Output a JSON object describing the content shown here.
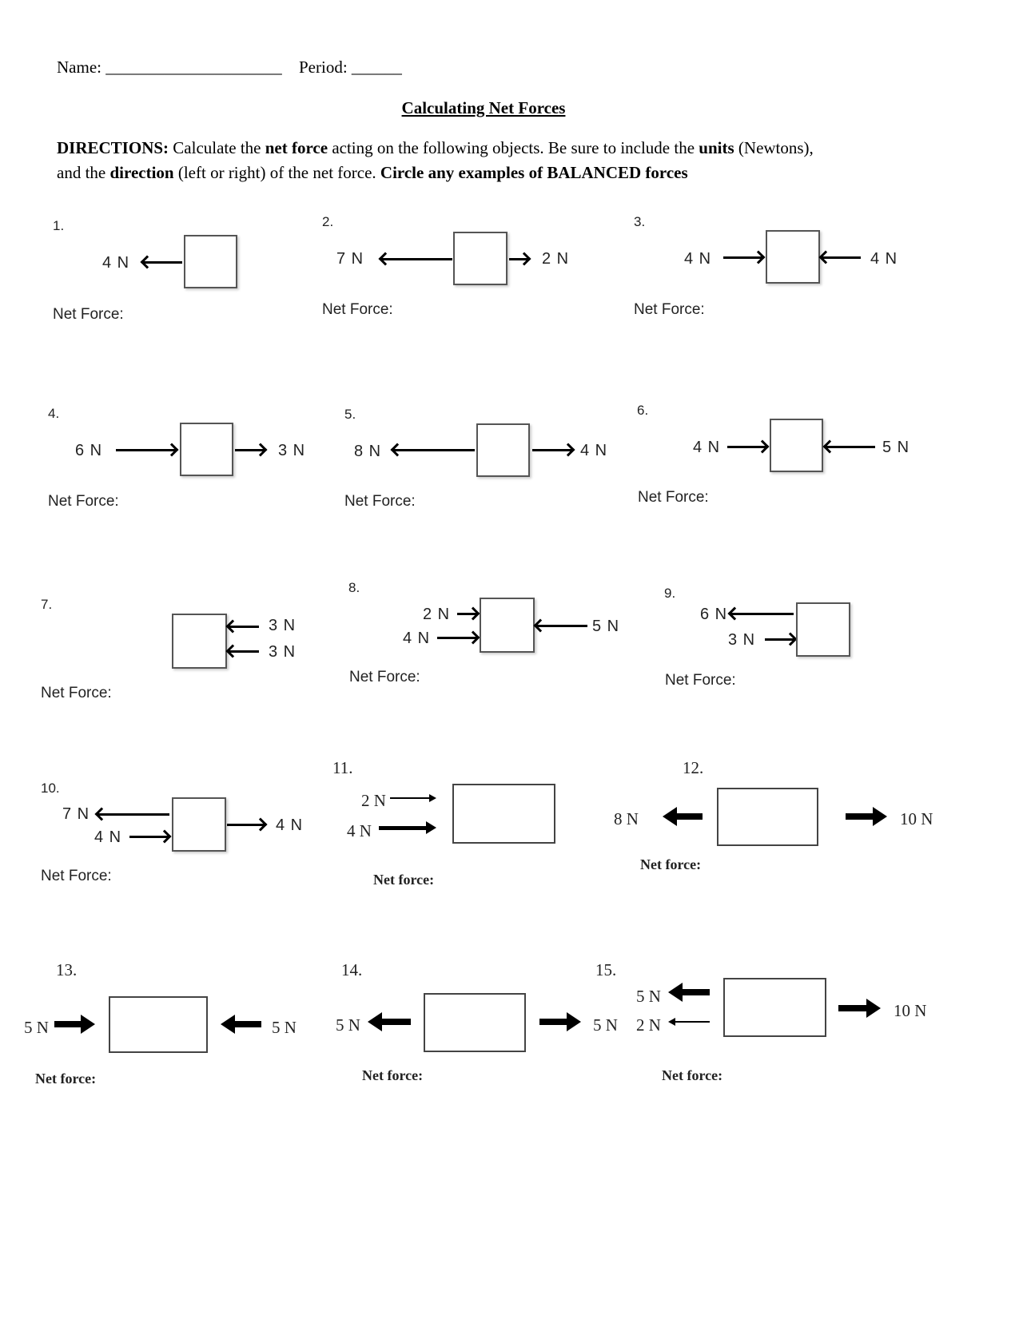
{
  "header": {
    "name_label": "Name: _____________________",
    "period_label": "Period: ______",
    "title": "Calculating Net Forces"
  },
  "directions": {
    "lead": "DIRECTIONS:",
    "t1": " Calculate the ",
    "b1": "net force",
    "t2": " acting on the following objects. Be sure to include the ",
    "b2": "units",
    "t3": " (Newtons),",
    "t4": "and the ",
    "b3": "direction",
    "t5": " (left or right) of the net force. ",
    "b4": "Circle any examples of BALANCED forces"
  },
  "problems": [
    {
      "number": "1.",
      "forces": [
        "4 N"
      ],
      "net_label": "Net Force:"
    },
    {
      "number": "2.",
      "forces": [
        "7 N",
        "2 N"
      ],
      "net_label": "Net Force:"
    },
    {
      "number": "3.",
      "forces": [
        "4 N",
        "4 N"
      ],
      "net_label": "Net Force:"
    },
    {
      "number": "4.",
      "forces": [
        "6 N",
        "3 N"
      ],
      "net_label": "Net Force:"
    },
    {
      "number": "5.",
      "forces": [
        "8 N",
        "4 N"
      ],
      "net_label": "Net Force:"
    },
    {
      "number": "6.",
      "forces": [
        "4 N",
        "5 N"
      ],
      "net_label": "Net Force:"
    },
    {
      "number": "7.",
      "forces": [
        "3 N",
        "3 N"
      ],
      "net_label": "Net Force:"
    },
    {
      "number": "8.",
      "forces": [
        "2 N",
        "4 N",
        "5 N"
      ],
      "net_label": "Net Force:"
    },
    {
      "number": "9.",
      "forces": [
        "6 N",
        "3 N"
      ],
      "net_label": "Net Force:"
    },
    {
      "number": "10.",
      "forces": [
        "7 N",
        "4 N",
        "4 N"
      ],
      "net_label": "Net Force:"
    },
    {
      "number": "11.",
      "forces": [
        "2 N",
        "4 N"
      ],
      "net_label": "Net force:"
    },
    {
      "number": "12.",
      "forces": [
        "8 N",
        "10 N"
      ],
      "net_label": "Net force:"
    },
    {
      "number": "13.",
      "forces": [
        "5 N",
        "5 N"
      ],
      "net_label": "Net force:"
    },
    {
      "number": "14.",
      "forces": [
        "5 N",
        "5 N"
      ],
      "net_label": "Net force:"
    },
    {
      "number": "15.",
      "forces": [
        "5 N",
        "2 N",
        "5 N",
        "10 N"
      ],
      "net_label": "Net force:"
    }
  ]
}
